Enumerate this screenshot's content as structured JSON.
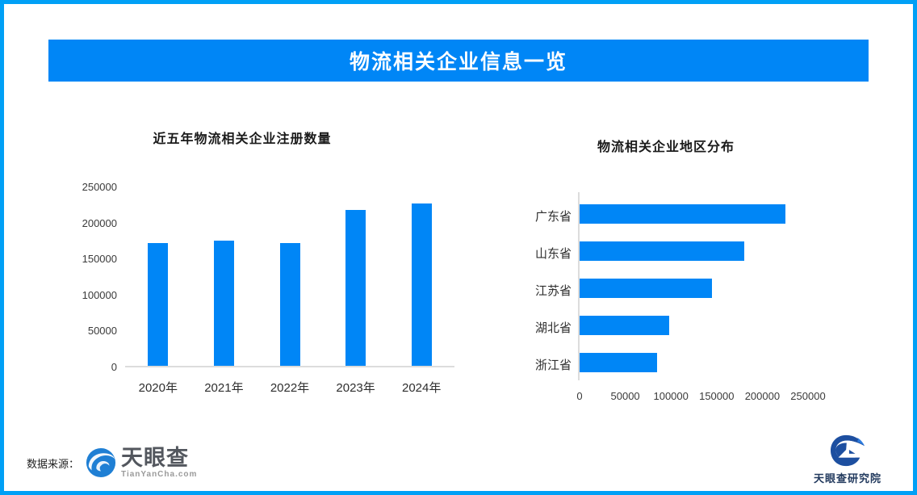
{
  "page": {
    "title": "物流相关企业信息一览"
  },
  "colors": {
    "frame": "#00a0f6",
    "banner": "#0086f6",
    "bar": "#0086f6",
    "axis_line": "#dcdcdc"
  },
  "footer": {
    "source_label": "数据来源：",
    "tianyancha_name": "天眼查",
    "tianyancha_domain": "TianYanCha.com",
    "research_name": "天眼查研究院"
  },
  "chart_data": [
    {
      "id": "yearly-registrations",
      "type": "bar",
      "title": "近五年物流相关企业注册数量",
      "categories": [
        "2020年",
        "2021年",
        "2022年",
        "2023年",
        "2024年"
      ],
      "values": [
        170000,
        174000,
        170000,
        216000,
        225000
      ],
      "xlabel": "",
      "ylabel": "",
      "ylim": [
        0,
        250000
      ],
      "yticks": [
        0,
        50000,
        100000,
        150000,
        200000,
        250000
      ],
      "grid": false,
      "legend": false,
      "bar_color": "#0086f6"
    },
    {
      "id": "region-distribution",
      "type": "bar-horizontal",
      "title": "物流相关企业地区分布",
      "categories": [
        "广东省",
        "山东省",
        "江苏省",
        "湖北省",
        "浙江省"
      ],
      "values": [
        225000,
        180000,
        145000,
        98000,
        85000
      ],
      "xlabel": "",
      "ylabel": "",
      "xlim": [
        0,
        250000
      ],
      "xticks": [
        0,
        50000,
        100000,
        150000,
        200000,
        250000
      ],
      "grid": false,
      "legend": false,
      "bar_color": "#0086f6"
    }
  ]
}
